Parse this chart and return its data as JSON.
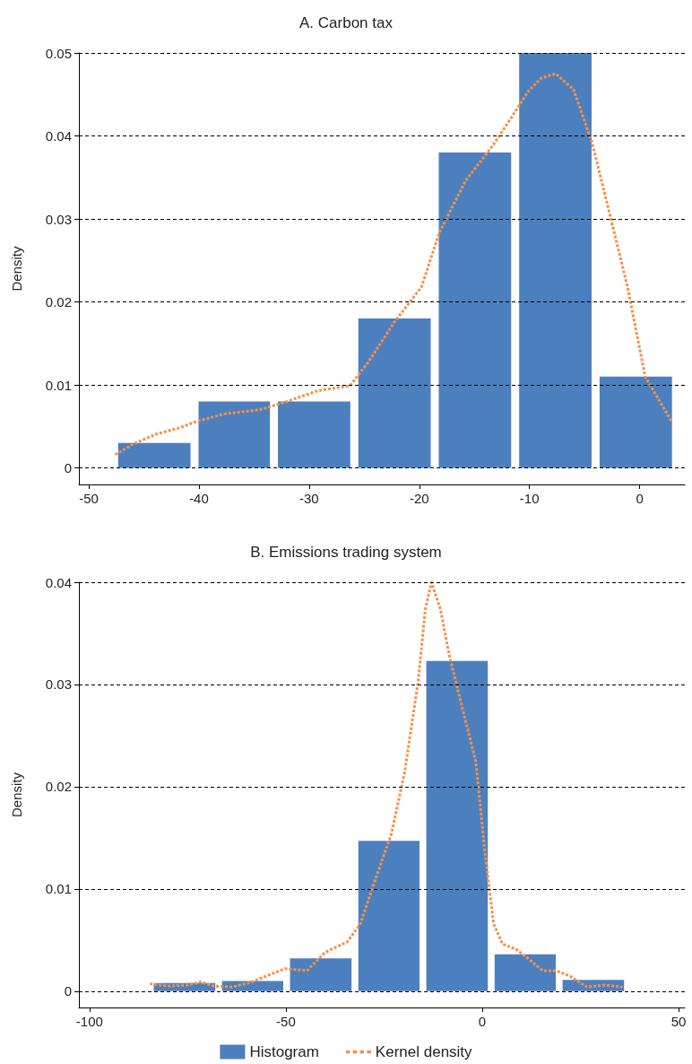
{
  "chart_data": [
    {
      "type": "histogram",
      "title": "A. Carbon tax",
      "ylabel": "Density",
      "xlim": [
        -50.9,
        4.1
      ],
      "xticks": [
        -50,
        -40,
        -30,
        -20,
        -10,
        0
      ],
      "ylim": [
        -0.002,
        0.05
      ],
      "yticks": [
        0,
        0.01,
        0.02,
        0.03,
        0.04,
        0.05
      ],
      "grid": "y",
      "legend": false,
      "series": [
        {
          "color": "#4c7fbe",
          "bins": [
            -47.7,
            -40.4,
            -33.2,
            -25.9,
            -18.6,
            -11.3,
            -4.0,
            3.3
          ],
          "values": [
            0.003,
            0.008,
            0.008,
            0.018,
            0.038,
            0.05,
            0.011
          ]
        },
        {
          "type": "line",
          "color": "#f5914a",
          "line_style": "dashed",
          "marker": "none",
          "x": [
            -47.6,
            -45.9,
            -43.8,
            -41.8,
            -40.2,
            -37.7,
            -34.5,
            -32.0,
            -29.2,
            -26.3,
            -24.7,
            -22.3,
            -19.8,
            -18.2,
            -15.8,
            -13.3,
            -11.7,
            -10.1,
            -8.9,
            -7.6,
            -6.0,
            -4.3,
            -2.7,
            -1.1,
            0.5,
            2.9
          ],
          "values": [
            0.0016,
            0.0029,
            0.0041,
            0.0048,
            0.0056,
            0.0065,
            0.007,
            0.008,
            0.0093,
            0.0099,
            0.0126,
            0.0175,
            0.0218,
            0.0283,
            0.0346,
            0.0389,
            0.0421,
            0.0454,
            0.047,
            0.0475,
            0.0456,
            0.0391,
            0.0305,
            0.0218,
            0.011,
            0.0056
          ]
        }
      ]
    },
    {
      "type": "histogram",
      "title": "B. Emissions trading system",
      "ylabel": "Density",
      "xlim": [
        -102.7,
        51.6
      ],
      "xticks": [
        -100,
        -50,
        0,
        50
      ],
      "ylim": [
        -0.0016,
        0.04
      ],
      "yticks": [
        0,
        0.01,
        0.02,
        0.03,
        0.04
      ],
      "grid": "y",
      "legend": "bottom",
      "series": [
        {
          "name": "Histogram",
          "color": "#4c7fbe",
          "bins": [
            -84.5,
            -67.1,
            -49.8,
            -32.4,
            -15.1,
            2.3,
            19.6,
            37.0
          ],
          "values": [
            0.0008,
            0.001,
            0.0032,
            0.0147,
            0.0323,
            0.0036,
            0.0011
          ]
        },
        {
          "type": "line",
          "name": "Kernel density",
          "color": "#f5914a",
          "line_style": "dashed",
          "marker": "none",
          "x": [
            -84.6,
            -79.6,
            -75.1,
            -71.7,
            -68.3,
            -63.8,
            -59.3,
            -54.8,
            -50.2,
            -44.6,
            -40.0,
            -34.4,
            -31.0,
            -27.6,
            -23.1,
            -19.7,
            -16.3,
            -14.5,
            -12.9,
            -10.6,
            -8.4,
            -5.0,
            -1.6,
            0.7,
            2.9,
            5.2,
            8.6,
            12.0,
            15.4,
            18.8,
            22.2,
            26.7,
            31.2,
            35.7
          ],
          "values": [
            0.0007,
            0.0005,
            0.0006,
            0.0009,
            0.0005,
            0.0004,
            0.0008,
            0.0015,
            0.0022,
            0.002,
            0.0038,
            0.0048,
            0.0066,
            0.0105,
            0.0154,
            0.0215,
            0.0303,
            0.0373,
            0.04,
            0.0373,
            0.0329,
            0.0276,
            0.0224,
            0.0136,
            0.0066,
            0.0046,
            0.0041,
            0.0031,
            0.002,
            0.002,
            0.0015,
            0.0004,
            0.0006,
            0.0004
          ]
        }
      ]
    }
  ]
}
